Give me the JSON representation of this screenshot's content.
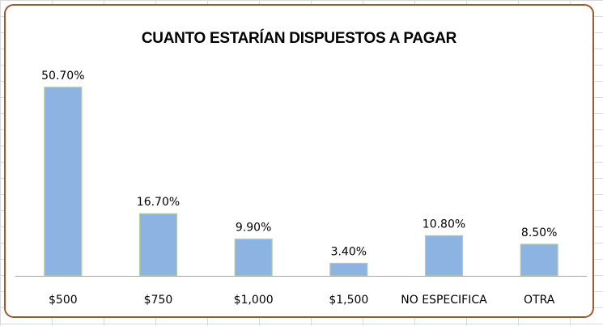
{
  "chart_data": {
    "type": "bar",
    "title": "CUANTO ESTARÍAN DISPUESTOS A PAGAR",
    "categories": [
      "$500",
      "$750",
      "$1,000",
      "$1,500",
      "NO ESPECIFICA",
      "OTRA"
    ],
    "values": [
      50.7,
      16.7,
      9.9,
      3.4,
      10.8,
      8.5
    ],
    "data_labels": [
      "50.70%",
      "16.70%",
      "9.90%",
      "3.40%",
      "10.80%",
      "8.50%"
    ],
    "unit": "%",
    "ylim": [
      0,
      60
    ],
    "grid": false,
    "legend": "none",
    "colors": {
      "bar_fill": "#8db3e2",
      "bar_stroke": "#b8cfa0",
      "border": "#9c5a2a",
      "axis": "#a6a6a6"
    }
  }
}
